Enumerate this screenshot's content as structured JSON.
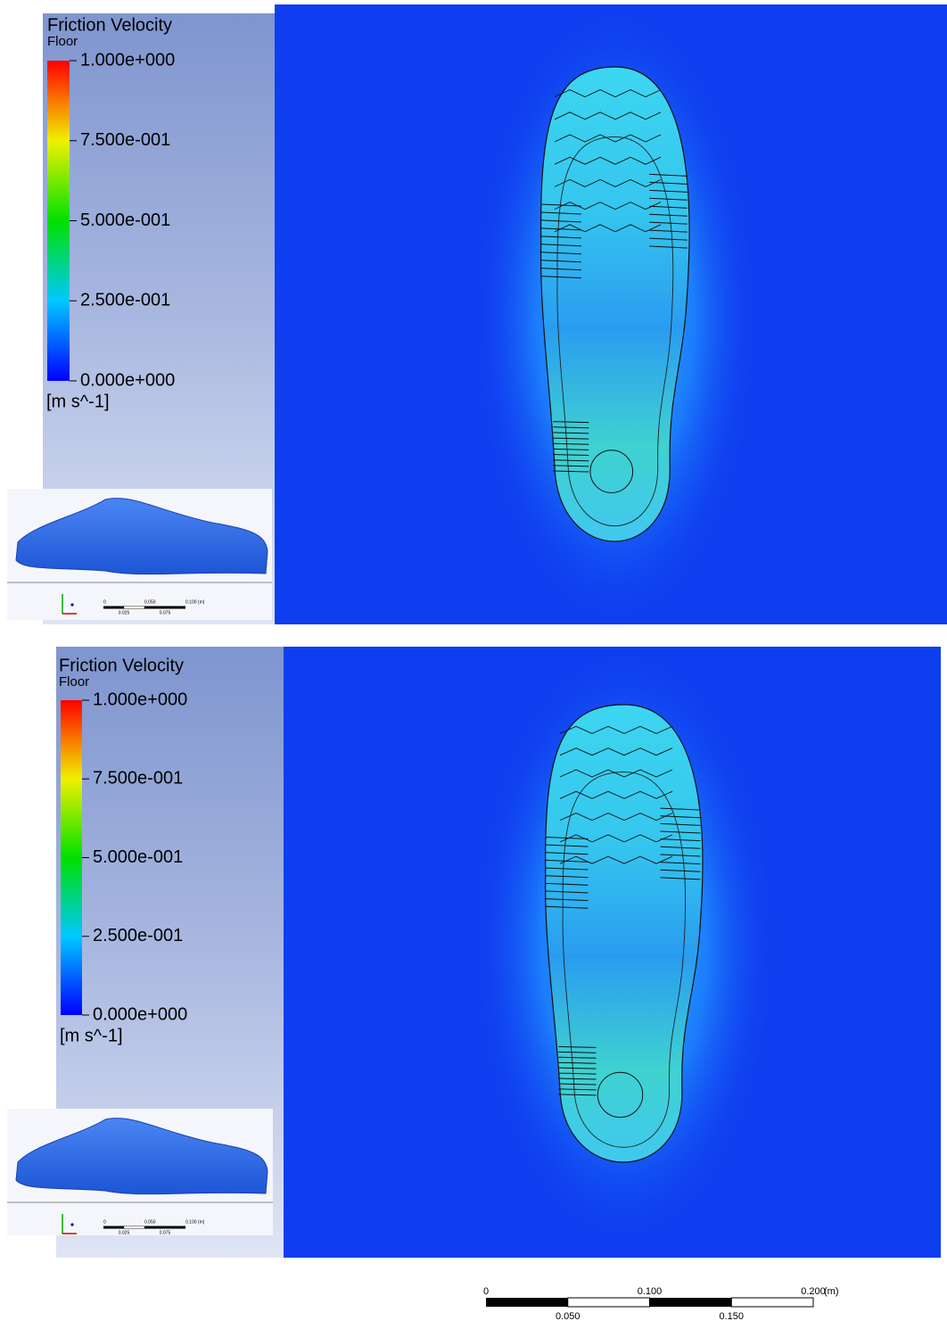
{
  "panels": [
    {
      "legend": {
        "title": "Friction Velocity",
        "subtitle": "Floor",
        "ticks": [
          "1.000e+000",
          "7.500e-001",
          "5.000e-001",
          "2.500e-001",
          "0.000e+000"
        ],
        "unit": "[m s^-1]"
      },
      "thumbnail_scale": {
        "top_labels": [
          "0",
          "0.050",
          "0.100 (m)"
        ],
        "bottom_labels": [
          "0.025",
          "0.075"
        ]
      }
    },
    {
      "legend": {
        "title": "Friction Velocity",
        "subtitle": "Floor",
        "ticks": [
          "1.000e+000",
          "7.500e-001",
          "5.000e-001",
          "2.500e-001",
          "0.000e+000"
        ],
        "unit": "[m s^-1]"
      },
      "thumbnail_scale": {
        "top_labels": [
          "0",
          "0.050",
          "0.100 (m)"
        ],
        "bottom_labels": [
          "0.025",
          "0.075"
        ]
      }
    }
  ],
  "scale_bar": {
    "top_labels": [
      "0",
      "0.100",
      "0.200"
    ],
    "unit": "(m)",
    "bottom_labels": [
      "0.050",
      "0.150"
    ]
  }
}
